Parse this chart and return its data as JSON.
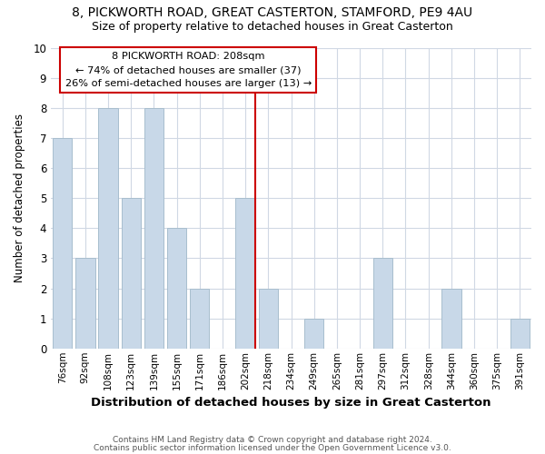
{
  "title_line1": "8, PICKWORTH ROAD, GREAT CASTERTON, STAMFORD, PE9 4AU",
  "title_line2": "Size of property relative to detached houses in Great Casterton",
  "xlabel": "Distribution of detached houses by size in Great Casterton",
  "ylabel": "Number of detached properties",
  "bar_labels": [
    "76sqm",
    "92sqm",
    "108sqm",
    "123sqm",
    "139sqm",
    "155sqm",
    "171sqm",
    "186sqm",
    "202sqm",
    "218sqm",
    "234sqm",
    "249sqm",
    "265sqm",
    "281sqm",
    "297sqm",
    "312sqm",
    "328sqm",
    "344sqm",
    "360sqm",
    "375sqm",
    "391sqm"
  ],
  "bar_values": [
    7,
    3,
    8,
    5,
    8,
    4,
    2,
    0,
    5,
    2,
    0,
    1,
    0,
    0,
    3,
    0,
    0,
    2,
    0,
    0,
    1
  ],
  "bar_color": "#c8d8e8",
  "bar_edge_color": "#a8bece",
  "vline_color": "#cc0000",
  "annotation_line1": "8 PICKWORTH ROAD: 208sqm",
  "annotation_line2": "← 74% of detached houses are smaller (37)",
  "annotation_line3": "26% of semi-detached houses are larger (13) →",
  "annotation_box_color": "#ffffff",
  "annotation_box_edge": "#cc0000",
  "ylim": [
    0,
    10
  ],
  "yticks": [
    0,
    1,
    2,
    3,
    4,
    5,
    6,
    7,
    8,
    9,
    10
  ],
  "footnote1": "Contains HM Land Registry data © Crown copyright and database right 2024.",
  "footnote2": "Contains public sector information licensed under the Open Government Licence v3.0.",
  "background_color": "#ffffff",
  "grid_color": "#d0d8e4"
}
